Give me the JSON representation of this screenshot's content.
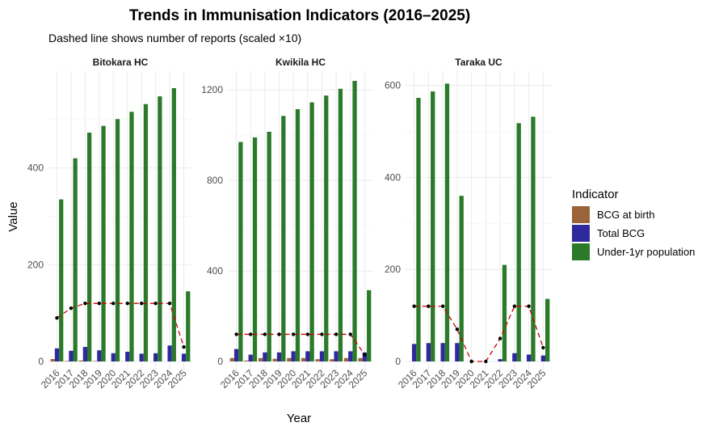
{
  "chart_data": {
    "type": "bar",
    "title": "Trends in Immunisation Indicators (2016–2025)",
    "subtitle": "Dashed line shows number of reports (scaled ×10)",
    "xlabel": "Year",
    "ylabel": "Value",
    "legend": {
      "title": "Indicator",
      "placement": "right",
      "entries": [
        {
          "name": "BCG at birth",
          "color": "#9A6339"
        },
        {
          "name": "Total BCG",
          "color": "#2E2A9E"
        },
        {
          "name": "Under-1yr population",
          "color": "#2A7A2A"
        }
      ]
    },
    "line_style": {
      "color": "#CC0000",
      "point_color": "#000000",
      "dash": "dashed"
    },
    "categories": [
      "2016",
      "2017",
      "2018",
      "2019",
      "2020",
      "2021",
      "2022",
      "2023",
      "2024",
      "2025"
    ],
    "panels": [
      {
        "name": "Bitokara HC",
        "ylim": [
          0,
          580
        ],
        "yticks": [
          0,
          200,
          400
        ],
        "series": [
          {
            "name": "BCG at birth",
            "values": [
              5,
              1,
              2,
              1,
              0,
              0,
              0,
              0,
              0,
              0
            ]
          },
          {
            "name": "Total BCG",
            "values": [
              27,
              22,
              30,
              23,
              17,
              20,
              16,
              17,
              33,
              16
            ]
          },
          {
            "name": "Under-1yr population",
            "values": [
              335,
              420,
              473,
              487,
              501,
              516,
              532,
              548,
              565,
              145
            ]
          }
        ],
        "reports_scaled": [
          90,
          110,
          120,
          120,
          120,
          120,
          120,
          120,
          120,
          30
        ]
      },
      {
        "name": "Kwikila HC",
        "ylim": [
          0,
          1240
        ],
        "yticks": [
          0,
          400,
          800,
          1200
        ],
        "series": [
          {
            "name": "BCG at birth",
            "values": [
              15,
              4,
              15,
              12,
              15,
              15,
              10,
              10,
              15,
              15
            ]
          },
          {
            "name": "Total BCG",
            "values": [
              55,
              30,
              40,
              40,
              45,
              45,
              45,
              45,
              45,
              40
            ]
          },
          {
            "name": "Under-1yr population",
            "values": [
              970,
              990,
              1015,
              1085,
              1115,
              1145,
              1175,
              1205,
              1240,
              315
            ]
          }
        ],
        "reports_scaled": [
          120,
          120,
          120,
          120,
          120,
          120,
          120,
          120,
          120,
          30
        ]
      },
      {
        "name": "Taraka UC",
        "ylim": [
          0,
          610
        ],
        "yticks": [
          0,
          200,
          400,
          600
        ],
        "series": [
          {
            "name": "BCG at birth",
            "values": [
              0,
              0,
              0,
              0,
              0,
              0,
              0,
              0,
              0,
              0
            ]
          },
          {
            "name": "Total BCG",
            "values": [
              38,
              40,
              40,
              40,
              0,
              0,
              5,
              18,
              15,
              13
            ]
          },
          {
            "name": "Under-1yr population",
            "values": [
              573,
              587,
              604,
              360,
              0,
              0,
              210,
              518,
              532,
              136
            ]
          }
        ],
        "reports_scaled": [
          120,
          120,
          120,
          70,
          0,
          0,
          50,
          120,
          120,
          30
        ]
      }
    ]
  }
}
